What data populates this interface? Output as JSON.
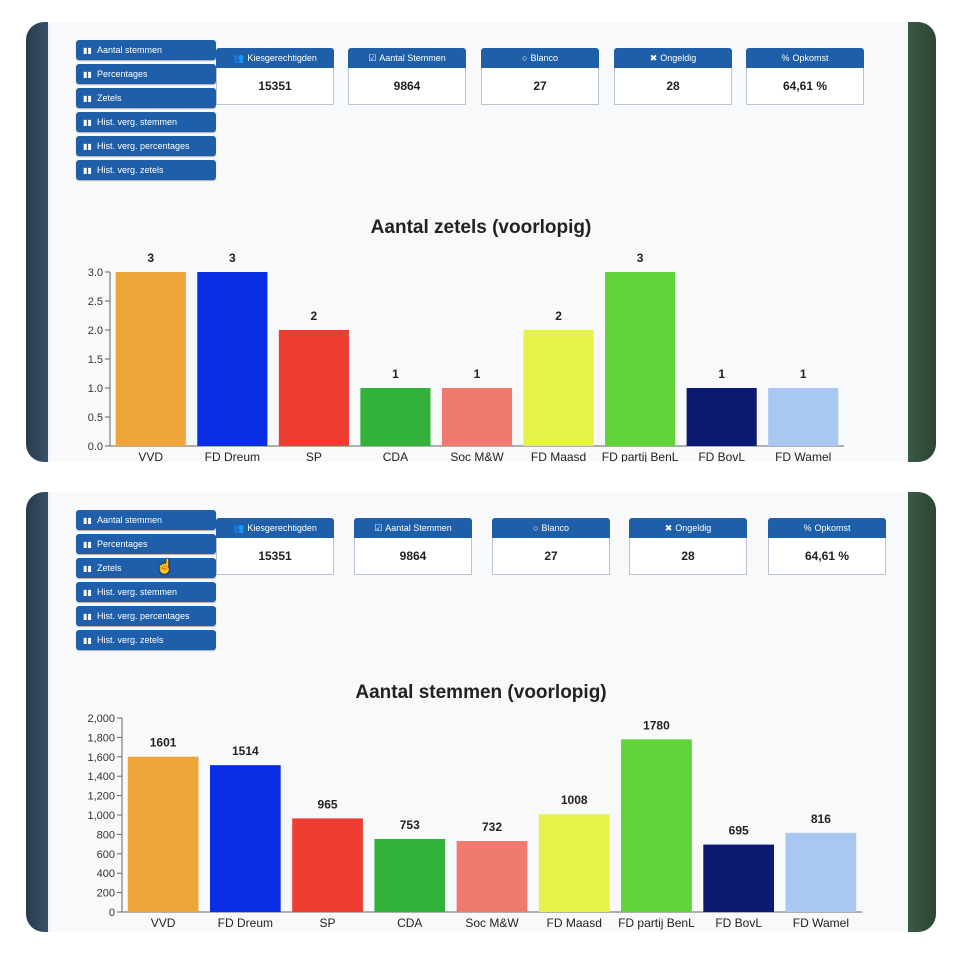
{
  "menu": [
    {
      "icon": "bar-chart-icon",
      "label": "Aantal stemmen"
    },
    {
      "icon": "bar-chart-icon",
      "label": "Percentages"
    },
    {
      "icon": "bar-chart-icon",
      "label": "Zetels"
    },
    {
      "icon": "bar-chart-icon",
      "label": "Hist. verg. stemmen"
    },
    {
      "icon": "bar-chart-icon",
      "label": "Hist. verg. percentages"
    },
    {
      "icon": "bar-chart-icon",
      "label": "Hist. verg. zetels"
    }
  ],
  "stats": [
    {
      "icon": "users-icon",
      "glyph": "👥",
      "label": "Kiesgerechtigden",
      "value": "15351"
    },
    {
      "icon": "checkbox-icon",
      "glyph": "☑",
      "label": "Aantal Stemmen",
      "value": "9864"
    },
    {
      "icon": "circle-icon",
      "glyph": "○",
      "label": "Blanco",
      "value": "27"
    },
    {
      "icon": "close-icon",
      "glyph": "✖",
      "label": "Ongeldig",
      "value": "28"
    },
    {
      "icon": "percent-icon",
      "glyph": "%",
      "label": "Opkomst",
      "value": "64,61 %"
    }
  ],
  "chart_data": [
    {
      "type": "bar",
      "title": "Aantal zetels (voorlopig)",
      "categories": [
        "VVD",
        "FD Dreum",
        "SP",
        "CDA",
        "Soc M&W",
        "FD Maasd",
        "FD partij BenL",
        "FD BovL",
        "FD Wamel"
      ],
      "values": [
        3,
        3,
        2,
        1,
        1,
        2,
        3,
        1,
        1
      ],
      "value_labels": [
        "3",
        "3",
        "2",
        "1",
        "1",
        "2",
        "3",
        "1",
        "1"
      ],
      "colors": [
        "#f0a53a",
        "#0a2ee6",
        "#ee3d32",
        "#32b23a",
        "#f07a70",
        "#e6f24a",
        "#62d23a",
        "#0a1a70",
        "#a8c8f2"
      ],
      "yticks": [
        "0.0",
        "0.5",
        "1.0",
        "1.5",
        "2.0",
        "2.5",
        "3.0"
      ],
      "ylim": [
        0,
        3.0
      ],
      "xlabel": "",
      "ylabel": ""
    },
    {
      "type": "bar",
      "title": "Aantal stemmen (voorlopig)",
      "categories": [
        "VVD",
        "FD Dreum",
        "SP",
        "CDA",
        "Soc M&W",
        "FD Maasd",
        "FD partij BenL",
        "FD BovL",
        "FD Wamel"
      ],
      "values": [
        1601,
        1514,
        965,
        753,
        732,
        1008,
        1780,
        695,
        816
      ],
      "value_labels": [
        "1601",
        "1514",
        "965",
        "753",
        "732",
        "1008",
        "1780",
        "695",
        "816"
      ],
      "colors": [
        "#f0a53a",
        "#0a2ee6",
        "#ee3d32",
        "#32b23a",
        "#f07a70",
        "#e6f24a",
        "#62d23a",
        "#0a1a70",
        "#a8c8f2"
      ],
      "yticks": [
        "0",
        "200",
        "400",
        "600",
        "800",
        "1,000",
        "1,200",
        "1,400",
        "1,600",
        "1,800",
        "2,000"
      ],
      "ylim": [
        0,
        2000
      ],
      "xlabel": "",
      "ylabel": ""
    }
  ]
}
